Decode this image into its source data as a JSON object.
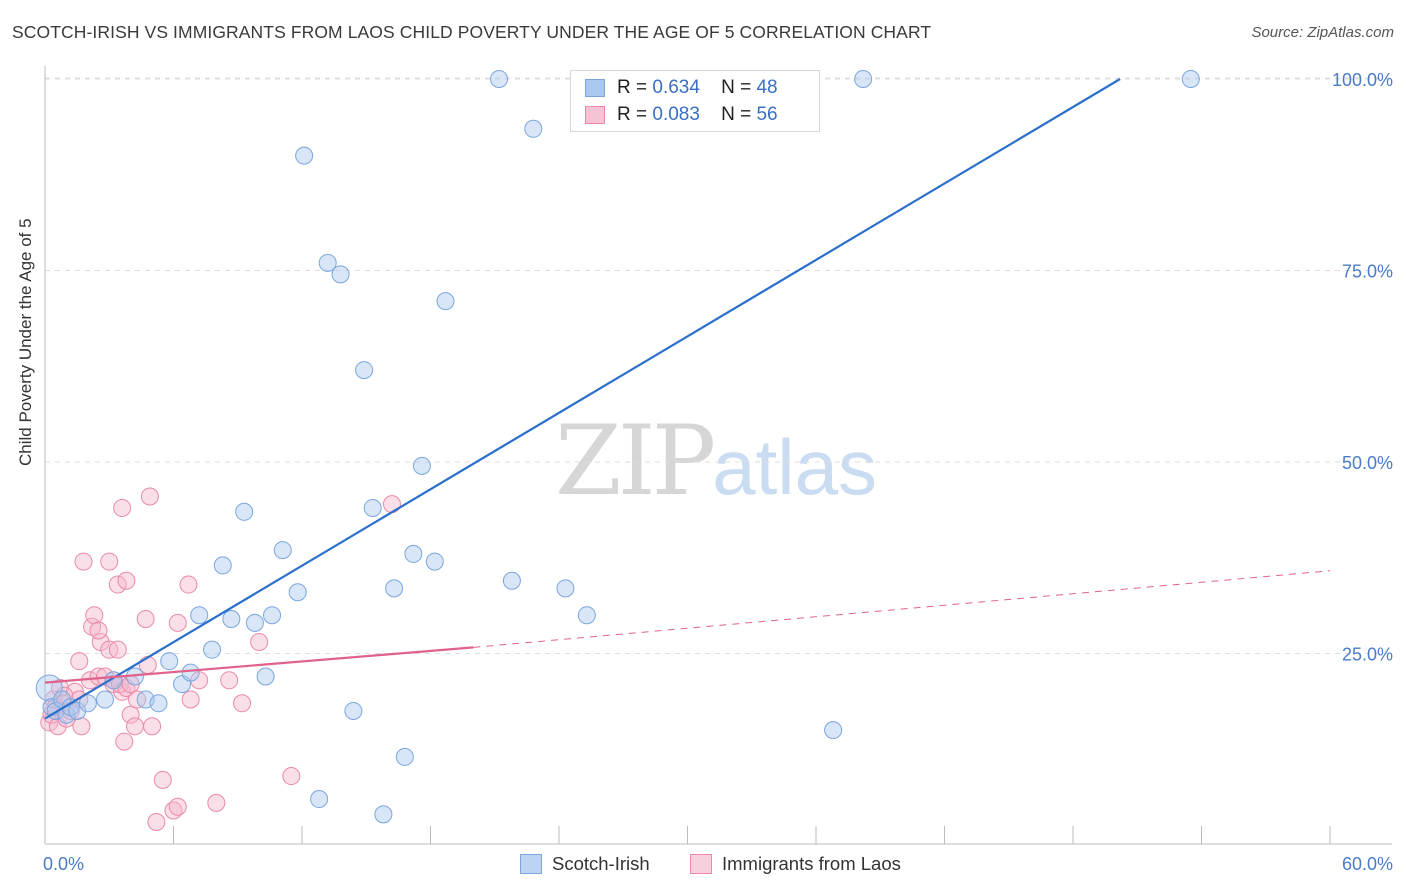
{
  "header": {
    "title": "SCOTCH-IRISH VS IMMIGRANTS FROM LAOS CHILD POVERTY UNDER THE AGE OF 5 CORRELATION CHART",
    "source": "Source: ZipAtlas.com"
  },
  "watermark": {
    "zip": "ZIP",
    "atlas": "atlas"
  },
  "legend": {
    "rows": [
      {
        "r_label": "R =",
        "r_value": "0.634",
        "n_label": "N =",
        "n_value": "48"
      },
      {
        "r_label": "R =",
        "r_value": "0.083",
        "n_label": "N =",
        "n_value": "56"
      }
    ]
  },
  "colors": {
    "blue_fill": "#a9c8ef",
    "blue_stroke": "#7aa6dd",
    "blue_line": "#2a6fcc",
    "pink_fill": "#f5b8cb",
    "pink_stroke": "#e98aa8",
    "pink_line": "#e0628c",
    "tick_label": "#4a7cc7"
  },
  "chart_data": {
    "type": "scatter",
    "title": "SCOTCH-IRISH VS IMMIGRANTS FROM LAOS CHILD POVERTY UNDER THE AGE OF 5 CORRELATION CHART",
    "xlabel": "",
    "ylabel": "Child Poverty Under the Age of 5",
    "xlim": [
      0,
      60
    ],
    "ylim": [
      0,
      102
    ],
    "x_tick_labels": [
      "0.0%",
      "60.0%"
    ],
    "y_ticks": [
      25,
      50,
      75,
      100
    ],
    "y_tick_labels": [
      "25.0%",
      "50.0%",
      "75.0%",
      "100.0%"
    ],
    "grid": true,
    "legend_position": "bottom",
    "series": [
      {
        "name": "Scotch-Irish",
        "points": [
          [
            0.2,
            20.5
          ],
          [
            0.3,
            18
          ],
          [
            0.5,
            17.5
          ],
          [
            0.8,
            19
          ],
          [
            1.0,
            17
          ],
          [
            1.2,
            18
          ],
          [
            1.5,
            17.5
          ],
          [
            2.0,
            18.5
          ],
          [
            2.8,
            19
          ],
          [
            3.2,
            21.5
          ],
          [
            4.2,
            22
          ],
          [
            4.7,
            19
          ],
          [
            5.3,
            18.5
          ],
          [
            5.8,
            24
          ],
          [
            6.4,
            21
          ],
          [
            6.8,
            22.5
          ],
          [
            7.2,
            30
          ],
          [
            7.8,
            25.5
          ],
          [
            8.3,
            36.5
          ],
          [
            8.7,
            29.5
          ],
          [
            9.3,
            43.5
          ],
          [
            9.8,
            29
          ],
          [
            10.3,
            22
          ],
          [
            10.6,
            30
          ],
          [
            11.1,
            38.5
          ],
          [
            11.8,
            33
          ],
          [
            12.1,
            90
          ],
          [
            12.8,
            6
          ],
          [
            13.2,
            76
          ],
          [
            13.8,
            74.5
          ],
          [
            14.4,
            17.5
          ],
          [
            14.9,
            62
          ],
          [
            15.3,
            44
          ],
          [
            15.8,
            4
          ],
          [
            16.3,
            33.5
          ],
          [
            16.8,
            11.5
          ],
          [
            17.2,
            38
          ],
          [
            17.6,
            49.5
          ],
          [
            18.2,
            37
          ],
          [
            18.7,
            71
          ],
          [
            21.2,
            100
          ],
          [
            21.8,
            34.5
          ],
          [
            22.8,
            93.5
          ],
          [
            24.3,
            33.5
          ],
          [
            25.3,
            30
          ],
          [
            36.8,
            15
          ],
          [
            38.2,
            100
          ],
          [
            53.5,
            100
          ]
        ]
      },
      {
        "name": "Immigrants from Laos",
        "points": [
          [
            0.2,
            16
          ],
          [
            0.3,
            17
          ],
          [
            0.4,
            19
          ],
          [
            0.5,
            18
          ],
          [
            0.6,
            15.5
          ],
          [
            0.7,
            20.5
          ],
          [
            0.8,
            18.5
          ],
          [
            1.0,
            16.5
          ],
          [
            1.2,
            17.5
          ],
          [
            1.4,
            20
          ],
          [
            1.6,
            19
          ],
          [
            1.7,
            15.5
          ],
          [
            1.6,
            24
          ],
          [
            1.8,
            37
          ],
          [
            2.1,
            21.5
          ],
          [
            2.2,
            28.5
          ],
          [
            2.3,
            30
          ],
          [
            2.5,
            22
          ],
          [
            2.6,
            26.5
          ],
          [
            2.8,
            22
          ],
          [
            2.5,
            28
          ],
          [
            3.0,
            37
          ],
          [
            3.2,
            21
          ],
          [
            3.0,
            25.5
          ],
          [
            3.4,
            25.5
          ],
          [
            3.2,
            21.5
          ],
          [
            3.4,
            34
          ],
          [
            3.6,
            20
          ],
          [
            3.5,
            21
          ],
          [
            3.6,
            44
          ],
          [
            3.7,
            13.5
          ],
          [
            3.8,
            20.5
          ],
          [
            3.8,
            34.5
          ],
          [
            4.0,
            17
          ],
          [
            4.0,
            21
          ],
          [
            4.2,
            15.5
          ],
          [
            4.3,
            19
          ],
          [
            4.7,
            29.5
          ],
          [
            4.8,
            23.5
          ],
          [
            4.9,
            45.5
          ],
          [
            5.0,
            15.5
          ],
          [
            5.2,
            3
          ],
          [
            5.5,
            8.5
          ],
          [
            6.0,
            4.5
          ],
          [
            6.2,
            5
          ],
          [
            6.2,
            29
          ],
          [
            6.7,
            34
          ],
          [
            6.8,
            19
          ],
          [
            7.2,
            21.5
          ],
          [
            8.0,
            5.5
          ],
          [
            8.6,
            21.5
          ],
          [
            9.2,
            18.5
          ],
          [
            10.0,
            26.5
          ],
          [
            11.5,
            9
          ],
          [
            16.2,
            44.5
          ],
          [
            0.9,
            19.5
          ]
        ]
      }
    ],
    "trend_lines": [
      {
        "series": "Scotch-Irish",
        "x1": 0,
        "y1": 16.5,
        "x2": 50.2,
        "y2": 100,
        "style": "solid"
      },
      {
        "series": "Immigrants from Laos",
        "x1": 0,
        "y1": 21.2,
        "x2": 20,
        "y2": 25.8,
        "style": "solid"
      },
      {
        "series": "Immigrants from Laos",
        "x1": 20,
        "y1": 25.8,
        "x2": 60,
        "y2": 35.8,
        "style": "dashed"
      }
    ]
  }
}
